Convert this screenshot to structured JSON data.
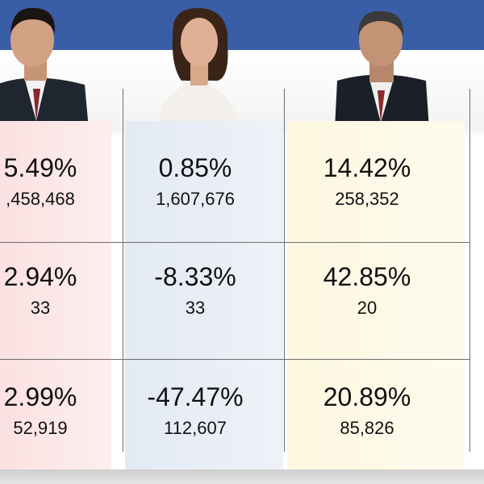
{
  "table": {
    "rows": [
      [
        {
          "percent": "5.49%",
          "count": ",458,468"
        },
        {
          "percent": "0.85%",
          "count": "1,607,676"
        },
        {
          "percent": "14.42%",
          "count": "258,352"
        }
      ],
      [
        {
          "percent": "2.94%",
          "count": "33"
        },
        {
          "percent": "-8.33%",
          "count": "33"
        },
        {
          "percent": "42.85%",
          "count": "20"
        }
      ],
      [
        {
          "percent": "2.99%",
          "count": "52,919"
        },
        {
          "percent": "-47.47%",
          "count": "112,607"
        },
        {
          "percent": "20.89%",
          "count": "85,826"
        }
      ]
    ]
  }
}
